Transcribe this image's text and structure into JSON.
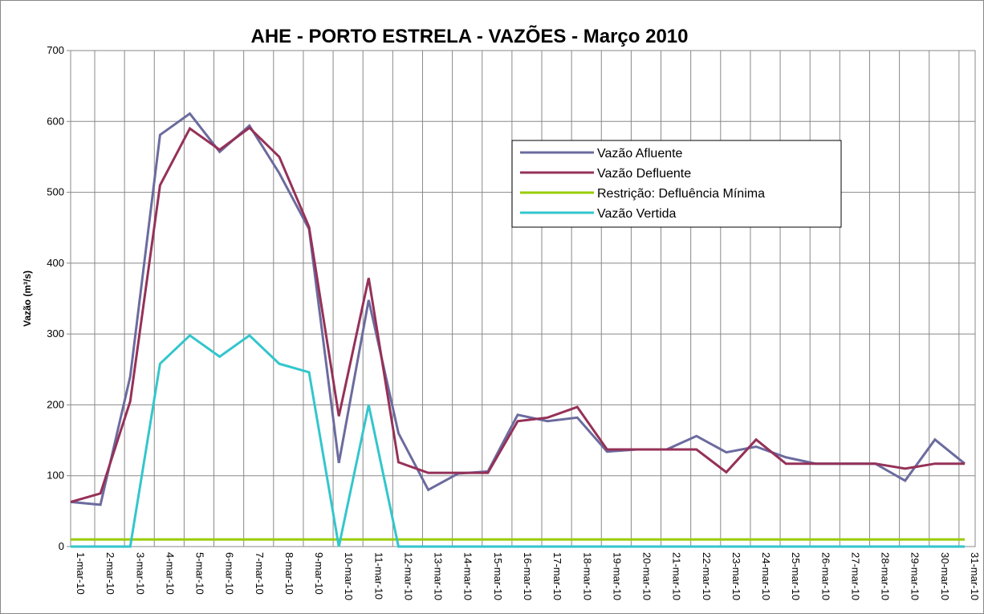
{
  "chart_data": {
    "type": "line",
    "title": "AHE - PORTO ESTRELA - VAZÕES - Março  2010",
    "y_label": "Vazão (m³/s)",
    "categories": [
      "1-mar-10",
      "2-mar-10",
      "3-mar-10",
      "4-mar-10",
      "5-mar-10",
      "6-mar-10",
      "7-mar-10",
      "8-mar-10",
      "9-mar-10",
      "10-mar-10",
      "11-mar-10",
      "12-mar-10",
      "13-mar-10",
      "14-mar-10",
      "15-mar-10",
      "16-mar-10",
      "17-mar-10",
      "18-mar-10",
      "19-mar-10",
      "20-mar-10",
      "21-mar-10",
      "22-mar-10",
      "23-mar-10",
      "24-mar-10",
      "25-mar-10",
      "26-mar-10",
      "27-mar-10",
      "28-mar-10",
      "29-mar-10",
      "30-mar-10",
      "31-mar-10"
    ],
    "series": [
      {
        "name": "Vazão Afluente",
        "color": "#6b6b9f",
        "values": [
          63,
          59,
          240,
          581,
          611,
          557,
          594,
          527,
          448,
          118,
          348,
          160,
          80,
          103,
          106,
          186,
          177,
          182,
          134,
          137,
          137,
          156,
          133,
          141,
          126,
          117,
          117,
          117,
          93,
          151,
          117
        ]
      },
      {
        "name": "Vazão Defluente",
        "color": "#953158",
        "values": [
          63,
          75,
          205,
          510,
          590,
          560,
          591,
          550,
          451,
          184,
          379,
          119,
          104,
          104,
          104,
          177,
          182,
          197,
          137,
          137,
          137,
          137,
          105,
          151,
          117,
          117,
          117,
          117,
          110,
          117,
          117
        ]
      },
      {
        "name": "Restrição: Defluência Mínima",
        "color": "#99cc00",
        "values": [
          10,
          10,
          10,
          10,
          10,
          10,
          10,
          10,
          10,
          10,
          10,
          10,
          10,
          10,
          10,
          10,
          10,
          10,
          10,
          10,
          10,
          10,
          10,
          10,
          10,
          10,
          10,
          10,
          10,
          10,
          10
        ]
      },
      {
        "name": "Vazão Vertida",
        "color": "#33c6cc",
        "values": [
          0,
          0,
          0,
          258,
          298,
          268,
          298,
          258,
          246,
          0,
          200,
          0,
          0,
          0,
          0,
          0,
          0,
          0,
          0,
          0,
          0,
          0,
          0,
          0,
          0,
          0,
          0,
          0,
          0,
          0,
          0
        ]
      }
    ],
    "ylim": [
      0,
      700
    ],
    "yticks": [
      0,
      100,
      200,
      300,
      400,
      500,
      600,
      700
    ],
    "grid": true
  }
}
